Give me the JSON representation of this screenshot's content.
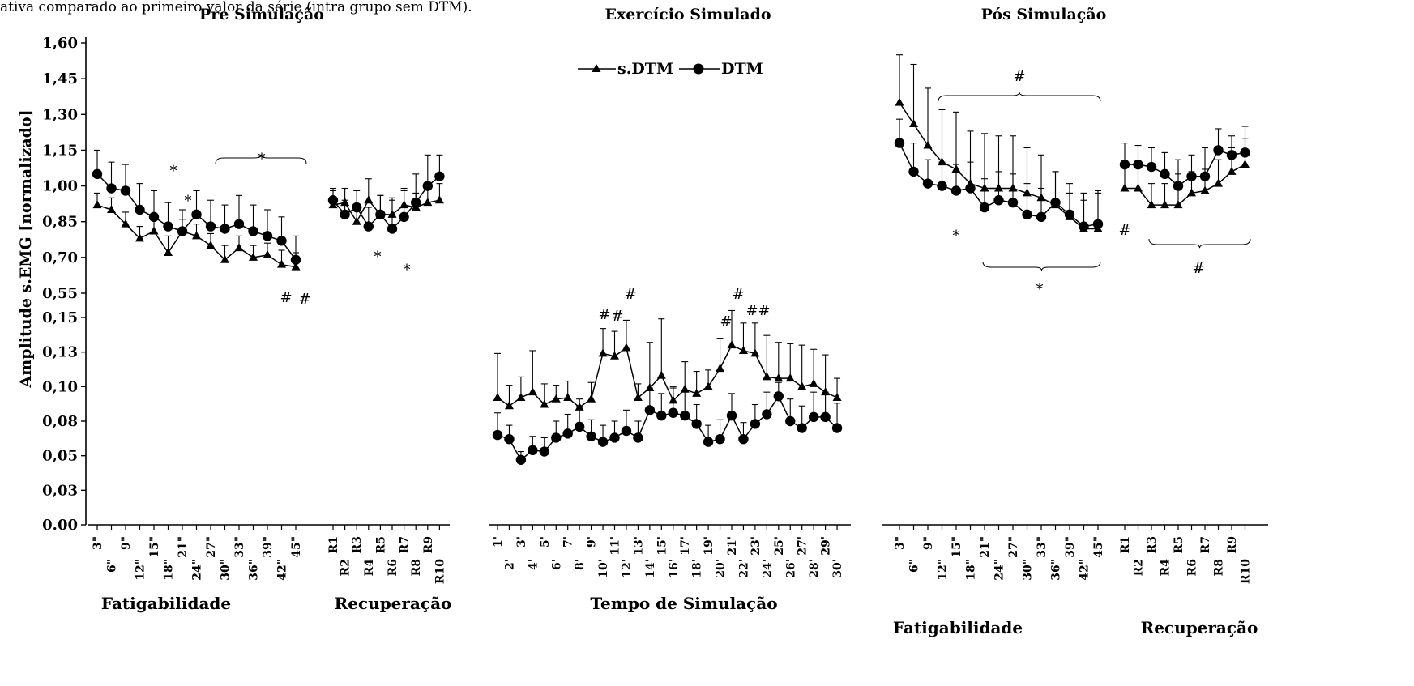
{
  "caption": "ativa comparado ao primeiro valor da série (intra grupo sem DTM).",
  "legend": [
    "s.DTM",
    "DTM"
  ],
  "colors": {
    "axis": "#000000",
    "series": "#000000"
  },
  "chart_data": {
    "type": "line",
    "ylabel": "Amplitude s.EMG [normalizado]",
    "yticks_upper": [
      "1,60",
      "1,45",
      "1,30",
      "1,15",
      "1,00",
      "0,85",
      "0,70",
      "0,55"
    ],
    "yticks_lower": [
      "0,15",
      "0,13",
      "0,10",
      "0,08",
      "0,05",
      "0,03",
      "0.00"
    ],
    "ylim_upper": [
      0.55,
      1.6
    ],
    "ylim_lower": [
      0.0,
      0.15
    ],
    "panels": [
      {
        "title": "Pre Simulação",
        "groups": [
          {
            "label": "Fatigabilidade",
            "categories": [
              "3\"",
              "6\"",
              "9\"",
              "12\"",
              "15\"",
              "18\"",
              "21\"",
              "24\"",
              "27\"",
              "30\"",
              "33\"",
              "36\"",
              "39\"",
              "42\"",
              "45\""
            ],
            "series": [
              {
                "name": "s.DTM",
                "values": [
                  0.92,
                  0.9,
                  0.84,
                  0.78,
                  0.81,
                  0.72,
                  0.81,
                  0.79,
                  0.75,
                  0.69,
                  0.74,
                  0.7,
                  0.71,
                  0.67,
                  0.66
                ],
                "err": [
                  0.05,
                  0.05,
                  0.05,
                  0.05,
                  0.05,
                  0.07,
                  0.05,
                  0.05,
                  0.05,
                  0.06,
                  0.05,
                  0.05,
                  0.05,
                  0.06,
                  0.06
                ]
              },
              {
                "name": "DTM",
                "values": [
                  1.05,
                  0.99,
                  0.98,
                  0.9,
                  0.87,
                  0.83,
                  0.81,
                  0.88,
                  0.83,
                  0.82,
                  0.84,
                  0.81,
                  0.79,
                  0.77,
                  0.69
                ],
                "err": [
                  0.1,
                  0.11,
                  0.11,
                  0.11,
                  0.11,
                  0.1,
                  0.09,
                  0.1,
                  0.11,
                  0.1,
                  0.12,
                  0.11,
                  0.11,
                  0.1,
                  0.1
                ]
              }
            ]
          },
          {
            "label": "Recuperação",
            "categories": [
              "R1",
              "R2",
              "R3",
              "R4",
              "R5",
              "R6",
              "R7",
              "R8",
              "R9",
              "R10"
            ],
            "series": [
              {
                "name": "s.DTM",
                "values": [
                  0.92,
                  0.93,
                  0.85,
                  0.94,
                  0.88,
                  0.88,
                  0.92,
                  0.91,
                  0.93,
                  0.94
                ],
                "err": [
                  0.06,
                  0.06,
                  0.06,
                  0.09,
                  0.08,
                  0.07,
                  0.06,
                  0.06,
                  0.07,
                  0.07
                ]
              },
              {
                "name": "DTM",
                "values": [
                  0.94,
                  0.88,
                  0.91,
                  0.83,
                  0.88,
                  0.82,
                  0.87,
                  0.93,
                  1.0,
                  1.04
                ],
                "err": [
                  0.05,
                  0.06,
                  0.07,
                  0.08,
                  0.08,
                  0.12,
                  0.12,
                  0.12,
                  0.13,
                  0.09
                ]
              }
            ]
          }
        ],
        "annotations": [
          {
            "text": "*",
            "note": "bracket over 27\"–45\" DTM"
          },
          {
            "text": "*",
            "at": "18\""
          },
          {
            "text": "*",
            "at": "21\""
          },
          {
            "text": "#",
            "at": "42\""
          },
          {
            "text": "#",
            "at": "45\""
          },
          {
            "text": "*",
            "at": "R5"
          },
          {
            "text": "*",
            "at": "R7"
          }
        ]
      },
      {
        "title": "Exercício Simulado",
        "groups": [
          {
            "label": "Tempo de Simulação",
            "categories": [
              "1'",
              "2'",
              "3'",
              "4'",
              "5'",
              "6'",
              "7'",
              "8'",
              "9'",
              "10'",
              "11'",
              "12'",
              "13'",
              "14'",
              "15'",
              "16'",
              "17'",
              "18'",
              "19'",
              "20'",
              "21'",
              "22'",
              "23'",
              "24'",
              "25'",
              "26'",
              "27'",
              "28'",
              "29'",
              "30'"
            ],
            "series": [
              {
                "name": "s.DTM",
                "values": [
                  0.092,
                  0.086,
                  0.092,
                  0.096,
                  0.087,
                  0.091,
                  0.092,
                  0.085,
                  0.091,
                  0.124,
                  0.122,
                  0.128,
                  0.092,
                  0.099,
                  0.108,
                  0.09,
                  0.098,
                  0.095,
                  0.1,
                  0.113,
                  0.13,
                  0.126,
                  0.124,
                  0.107,
                  0.106,
                  0.106,
                  0.1,
                  0.102,
                  0.096,
                  0.092
                ],
                "err": [
                  0.032,
                  0.015,
                  0.015,
                  0.03,
                  0.015,
                  0.01,
                  0.012,
                  0.006,
                  0.012,
                  0.018,
                  0.018,
                  0.02,
                  0.01,
                  0.033,
                  0.041,
                  0.01,
                  0.02,
                  0.016,
                  0.012,
                  0.022,
                  0.025,
                  0.02,
                  0.022,
                  0.03,
                  0.026,
                  0.025,
                  0.03,
                  0.025,
                  0.027,
                  0.014
                ]
              },
              {
                "name": "DTM",
                "values": [
                  0.065,
                  0.062,
                  0.047,
                  0.054,
                  0.053,
                  0.063,
                  0.066,
                  0.071,
                  0.064,
                  0.06,
                  0.063,
                  0.068,
                  0.063,
                  0.083,
                  0.079,
                  0.081,
                  0.079,
                  0.073,
                  0.06,
                  0.062,
                  0.079,
                  0.062,
                  0.073,
                  0.08,
                  0.093,
                  0.075,
                  0.07,
                  0.078,
                  0.078,
                  0.07
                ],
                "err": [
                  0.016,
                  0.01,
                  0.006,
                  0.01,
                  0.01,
                  0.012,
                  0.014,
                  0.015,
                  0.012,
                  0.012,
                  0.012,
                  0.015,
                  0.012,
                  0.016,
                  0.016,
                  0.018,
                  0.018,
                  0.014,
                  0.012,
                  0.014,
                  0.016,
                  0.012,
                  0.014,
                  0.016,
                  0.01,
                  0.016,
                  0.016,
                  0.018,
                  0.018,
                  0.018
                ]
              }
            ]
          }
        ],
        "annotations": [
          {
            "text": "#",
            "at": "10'"
          },
          {
            "text": "#",
            "at": "11'"
          },
          {
            "text": "#",
            "at": "12'"
          },
          {
            "text": "#",
            "at": "20'"
          },
          {
            "text": "#",
            "at": "21'"
          },
          {
            "text": "#",
            "at": "22'"
          },
          {
            "text": "#",
            "at": "23'"
          }
        ]
      },
      {
        "title": "Pós Simulação",
        "groups": [
          {
            "label": "Fatigabilidade",
            "categories": [
              "3\"",
              "6\"",
              "9\"",
              "12\"",
              "15\"",
              "18\"",
              "21\"",
              "24\"",
              "27\"",
              "30\"",
              "33\"",
              "36\"",
              "39\"",
              "42\"",
              "45\""
            ],
            "series": [
              {
                "name": "s.DTM",
                "values": [
                  1.35,
                  1.26,
                  1.17,
                  1.1,
                  1.07,
                  1.01,
                  0.99,
                  0.99,
                  0.99,
                  0.97,
                  0.95,
                  0.92,
                  0.87,
                  0.82,
                  0.82
                ],
                "err": [
                  0.2,
                  0.25,
                  0.24,
                  0.22,
                  0.24,
                  0.22,
                  0.23,
                  0.22,
                  0.22,
                  0.19,
                  0.18,
                  0.14,
                  0.1,
                  0.12,
                  0.15
                ]
              },
              {
                "name": "DTM",
                "values": [
                  1.18,
                  1.06,
                  1.01,
                  1.0,
                  0.98,
                  0.99,
                  0.91,
                  0.94,
                  0.93,
                  0.88,
                  0.87,
                  0.93,
                  0.88,
                  0.83,
                  0.84
                ],
                "err": [
                  0.1,
                  0.12,
                  0.1,
                  0.1,
                  0.11,
                  0.11,
                  0.12,
                  0.12,
                  0.12,
                  0.13,
                  0.12,
                  0.13,
                  0.13,
                  0.14,
                  0.14
                ]
              }
            ]
          },
          {
            "label": "Recuperação",
            "categories": [
              "R1",
              "R2",
              "R3",
              "R4",
              "R5",
              "R6",
              "R7",
              "R8",
              "R9",
              "R10"
            ],
            "series": [
              {
                "name": "s.DTM",
                "values": [
                  0.99,
                  0.99,
                  0.92,
                  0.92,
                  0.92,
                  0.97,
                  0.98,
                  1.01,
                  1.06,
                  1.09
                ],
                "err": [
                  0.09,
                  0.09,
                  0.09,
                  0.09,
                  0.13,
                  0.09,
                  0.09,
                  0.1,
                  0.1,
                  0.11
                ]
              },
              {
                "name": "DTM",
                "values": [
                  1.09,
                  1.09,
                  1.08,
                  1.05,
                  1.0,
                  1.04,
                  1.04,
                  1.15,
                  1.13,
                  1.14
                ],
                "err": [
                  0.09,
                  0.08,
                  0.08,
                  0.09,
                  0.11,
                  0.09,
                  0.12,
                  0.09,
                  0.08,
                  0.11
                ]
              }
            ]
          }
        ],
        "annotations": [
          {
            "text": "#",
            "note": "bracket over 12\"–45\" s.DTM"
          },
          {
            "text": "*",
            "at": "15\""
          },
          {
            "text": "*",
            "note": "bracket under 21\"–45\" DTM"
          },
          {
            "text": "#",
            "at": "R1"
          },
          {
            "text": "#",
            "note": "bracket under R3–R10 s.DTM"
          }
        ]
      }
    ]
  }
}
